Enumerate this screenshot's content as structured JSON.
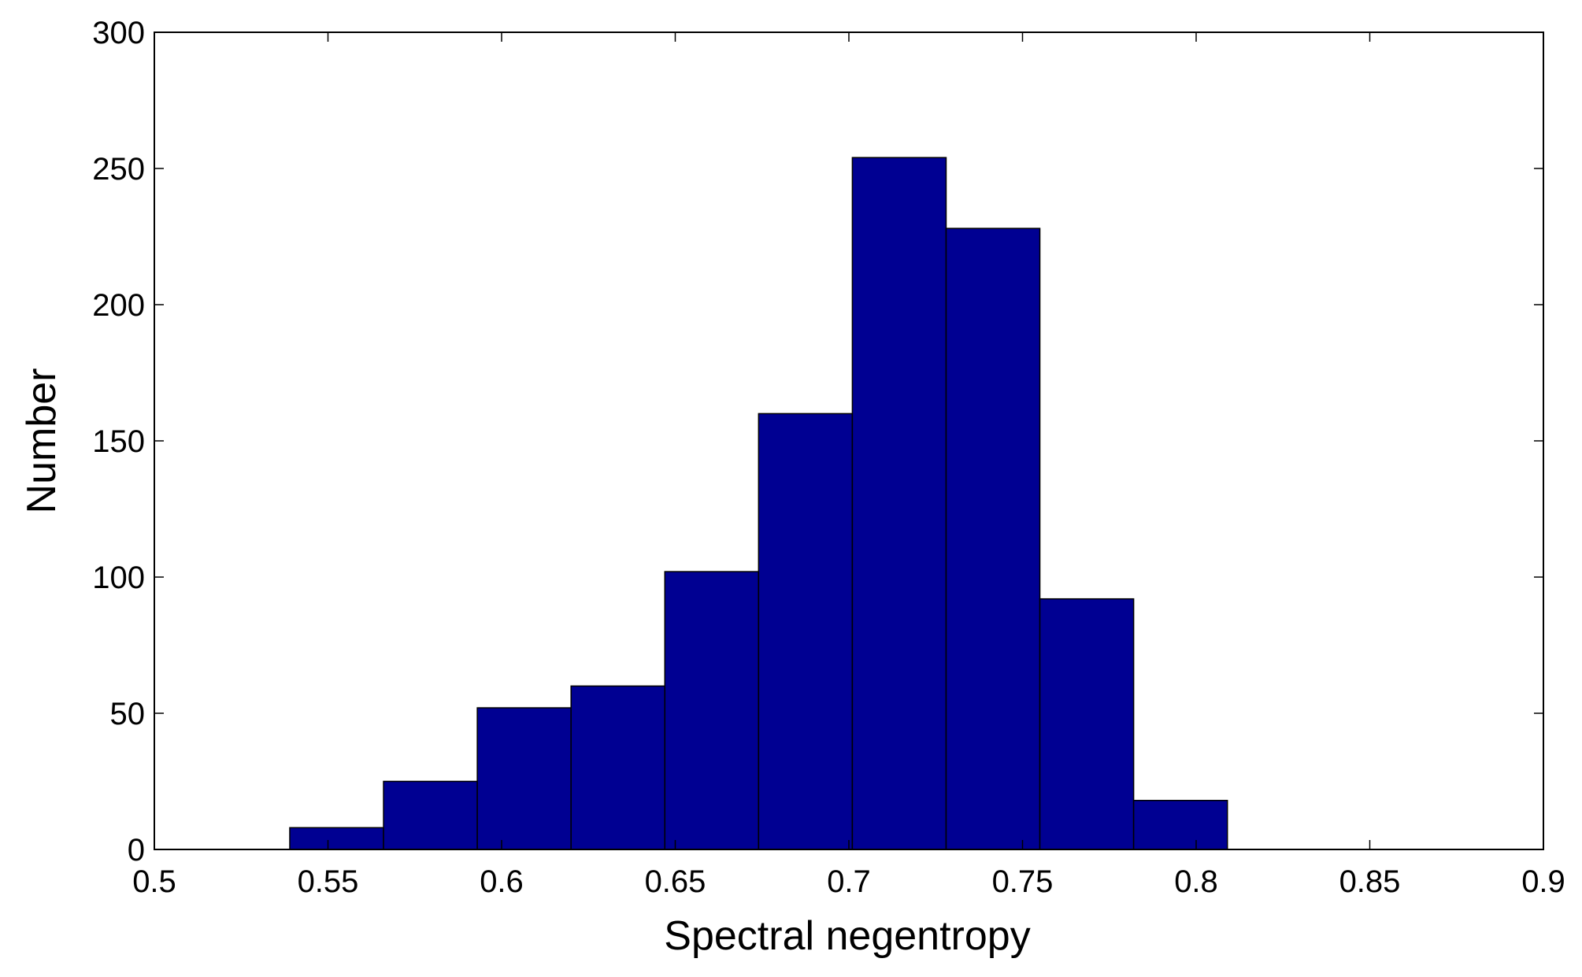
{
  "chart_data": {
    "type": "bar",
    "title": "",
    "xlabel": "Spectral negentropy",
    "ylabel": "Number",
    "xlim": [
      0.5,
      0.9
    ],
    "ylim": [
      0,
      300
    ],
    "x_ticks": [
      "0.5",
      "0.55",
      "0.6",
      "0.65",
      "0.7",
      "0.75",
      "0.8",
      "0.85",
      "0.9"
    ],
    "x_tick_values": [
      0.5,
      0.55,
      0.6,
      0.65,
      0.7,
      0.75,
      0.8,
      0.85,
      0.9
    ],
    "y_ticks": [
      "0",
      "50",
      "100",
      "150",
      "200",
      "250",
      "300"
    ],
    "y_tick_values": [
      0,
      50,
      100,
      150,
      200,
      250,
      300
    ],
    "bins": [
      {
        "x0": 0.539,
        "x1": 0.566,
        "value": 8
      },
      {
        "x0": 0.566,
        "x1": 0.593,
        "value": 25
      },
      {
        "x0": 0.593,
        "x1": 0.62,
        "value": 52
      },
      {
        "x0": 0.62,
        "x1": 0.647,
        "value": 60
      },
      {
        "x0": 0.647,
        "x1": 0.674,
        "value": 102
      },
      {
        "x0": 0.674,
        "x1": 0.701,
        "value": 160
      },
      {
        "x0": 0.701,
        "x1": 0.728,
        "value": 254
      },
      {
        "x0": 0.728,
        "x1": 0.755,
        "value": 228
      },
      {
        "x0": 0.755,
        "x1": 0.782,
        "value": 92
      },
      {
        "x0": 0.782,
        "x1": 0.809,
        "value": 18
      }
    ],
    "bar_color": "#000092",
    "edge_color": "#000000",
    "grid": false,
    "legend": "none"
  }
}
